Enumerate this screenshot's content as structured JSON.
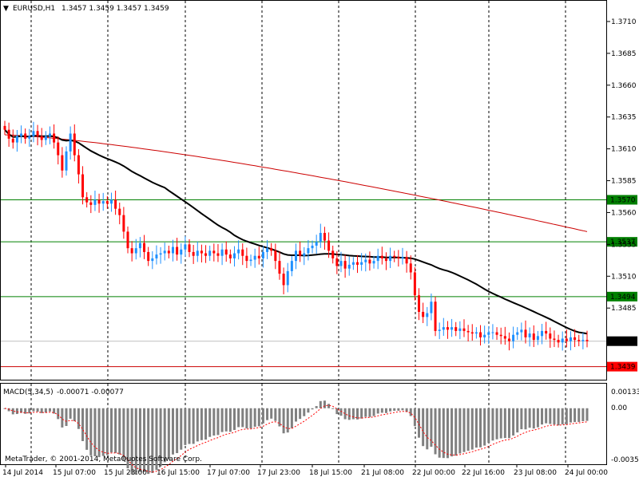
{
  "header": {
    "arrow": "▼",
    "symbol": "EURUSD,H1",
    "ohlc": "1.3457 1.3459 1.3457 1.3459"
  },
  "indicator": {
    "label": "MACD(5,34,5)",
    "values": "-0.00071 -0.00077",
    "axis_top": "0.00133",
    "axis_zero": "0.00",
    "axis_bottom": "-0.00352"
  },
  "copyright": "MetaTrader, © 2001-2014, MetaQuotes Software Corp.",
  "colors": {
    "bull": "#1e90ff",
    "bear": "#ff0000",
    "slow_ma": "#000000",
    "long_ma": "#cc0000",
    "level_line": "#008000",
    "level_label_bg": "#008000",
    "bid_label_bg": "#000000",
    "low_line": "#cc0000",
    "low_label_bg": "#ff0000",
    "histogram": "#808080",
    "signal": "#ff0000",
    "grid": "#000000"
  },
  "chart_data": {
    "type": "candlestick",
    "timeframe": "H1",
    "ylim": [
      1.343,
      1.3725
    ],
    "y_ticks": [
      "1.3710",
      "1.3685",
      "1.3660",
      "1.3635",
      "1.3610",
      "1.3585",
      "1.3560",
      "1.3535",
      "1.3510",
      "1.3485"
    ],
    "x_ticks": [
      "14 Jul 2014",
      "15 Jul 07:00",
      "15 Jul 23:00",
      "16 Jul 15:00",
      "17 Jul 07:00",
      "17 Jul 23:00",
      "18 Jul 15:00",
      "21 Jul 08:00",
      "22 Jul 00:00",
      "22 Jul 16:00",
      "23 Jul 08:00",
      "24 Jul 00:00"
    ],
    "levels": [
      {
        "label": "1.3570",
        "value": 1.357,
        "kind": "horizontal"
      },
      {
        "label": "1.3537",
        "value": 1.3537,
        "kind": "horizontal"
      },
      {
        "label": "1.3494",
        "value": 1.3494,
        "kind": "horizontal"
      },
      {
        "label": "1.3439",
        "value": 1.3439,
        "kind": "low"
      }
    ],
    "bid": {
      "label": "1.3459",
      "value": 1.3459
    },
    "close": [
      1.3625,
      1.3618,
      1.3615,
      1.362,
      1.3622,
      1.3618,
      1.362,
      1.3624,
      1.362,
      1.3617,
      1.362,
      1.3622,
      1.3615,
      1.3605,
      1.3593,
      1.3608,
      1.3622,
      1.3605,
      1.359,
      1.3572,
      1.3568,
      1.3566,
      1.357,
      1.3567,
      1.3569,
      1.3567,
      1.357,
      1.3563,
      1.3558,
      1.3545,
      1.3532,
      1.3528,
      1.3532,
      1.3536,
      1.3529,
      1.3522,
      1.3524,
      1.3527,
      1.3528,
      1.353,
      1.3528,
      1.3533,
      1.3527,
      1.3531,
      1.3535,
      1.3529,
      1.3526,
      1.353,
      1.3528,
      1.3526,
      1.353,
      1.3528,
      1.3526,
      1.3531,
      1.3527,
      1.3524,
      1.3528,
      1.3531,
      1.3526,
      1.3522,
      1.3523,
      1.3526,
      1.3524,
      1.3529,
      1.3532,
      1.353,
      1.3522,
      1.3512,
      1.3503,
      1.3514,
      1.3522,
      1.353,
      1.3526,
      1.3528,
      1.3532,
      1.3534,
      1.3537,
      1.3544,
      1.3538,
      1.353,
      1.3524,
      1.3518,
      1.3522,
      1.3516,
      1.3519,
      1.3521,
      1.3519,
      1.3521,
      1.3523,
      1.352,
      1.3522,
      1.3526,
      1.3524,
      1.3522,
      1.3526,
      1.3525,
      1.3524,
      1.3525,
      1.352,
      1.3513,
      1.3495,
      1.3482,
      1.3478,
      1.3481,
      1.349,
      1.3467,
      1.3468,
      1.347,
      1.3468,
      1.347,
      1.3467,
      1.3469,
      1.3467,
      1.3466,
      1.3465,
      1.3466,
      1.3462,
      1.3464,
      1.3466,
      1.3466,
      1.3464,
      1.3463,
      1.3461,
      1.3459,
      1.3464,
      1.3466,
      1.3468,
      1.3462,
      1.3465,
      1.346,
      1.3463,
      1.3467,
      1.3465,
      1.3461,
      1.346,
      1.3458,
      1.3461,
      1.3459,
      1.3462,
      1.346,
      1.3459,
      1.346,
      1.3459
    ],
    "slow_ma_label_hint": "",
    "macd_ylim": [
      -0.00352,
      0.00133
    ]
  }
}
